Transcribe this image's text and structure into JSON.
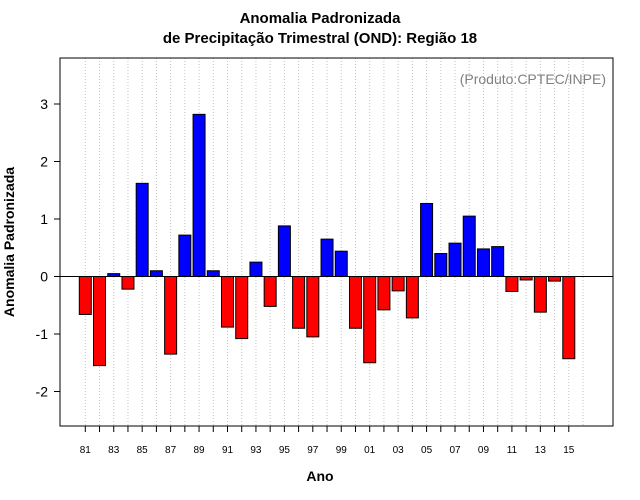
{
  "chart_data": {
    "type": "bar",
    "title": "Anomalia Padronizada",
    "subtitle": "de Precipitação Trimestral (OND): Região 18",
    "xlabel": "Ano",
    "ylabel": "Anomalia Padronizada",
    "annotation": "(Produto:CPTEC/INPE)",
    "ylim": [
      -2.6,
      3.8
    ],
    "yticks": [
      -2,
      -1,
      0,
      1,
      2,
      3
    ],
    "xtick_labels": [
      "81",
      "83",
      "85",
      "87",
      "89",
      "91",
      "93",
      "95",
      "97",
      "99",
      "01",
      "03",
      "05",
      "07",
      "09",
      "11",
      "13",
      "15"
    ],
    "categories": [
      "1981",
      "1982",
      "1983",
      "1984",
      "1985",
      "1986",
      "1987",
      "1988",
      "1989",
      "1990",
      "1991",
      "1992",
      "1993",
      "1994",
      "1995",
      "1996",
      "1997",
      "1998",
      "1999",
      "2000",
      "2001",
      "2002",
      "2003",
      "2004",
      "2005",
      "2006",
      "2007",
      "2008",
      "2009",
      "2010",
      "2011",
      "2012",
      "2013",
      "2014",
      "2015"
    ],
    "values": [
      -0.66,
      -1.55,
      0.05,
      -0.22,
      1.62,
      0.1,
      -1.35,
      0.72,
      2.82,
      0.1,
      -0.88,
      -1.08,
      0.25,
      -0.52,
      0.88,
      -0.9,
      -1.05,
      0.65,
      0.44,
      -0.9,
      -1.5,
      -0.58,
      -0.25,
      -0.72,
      1.27,
      0.4,
      0.58,
      1.05,
      0.48,
      0.52,
      -0.26,
      -0.06,
      -0.62,
      -0.08,
      -1.43
    ],
    "grid": true,
    "positive_color": "#0000ff",
    "negative_color": "#ff0000"
  }
}
